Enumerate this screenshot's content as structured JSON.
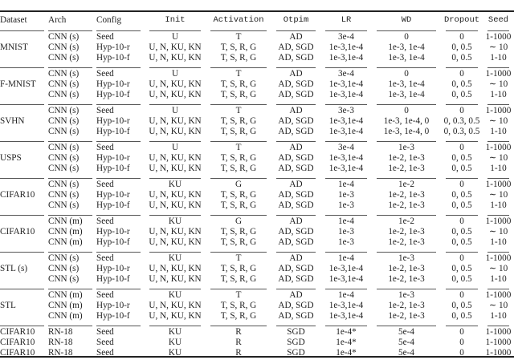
{
  "header": [
    "Dataset",
    "Arch",
    "Config",
    "Init",
    "Activation",
    "Otpim",
    "LR",
    "WD",
    "Dropout",
    "Seed"
  ],
  "groups": [
    {
      "dataset": "MNIST",
      "rows": [
        [
          "CNN (s)",
          "Seed",
          "U",
          "T",
          "AD",
          "3e-4",
          "0",
          "0",
          "1-1000"
        ],
        [
          "CNN (s)",
          "Hyp-10-r",
          "U, N, KU, KN",
          "T, S, R, G",
          "AD, SGD",
          "1e-3,1e-4",
          "1e-3, 1e-4",
          "0, 0.5",
          "∼ 10"
        ],
        [
          "CNN (s)",
          "Hyp-10-f",
          "U, N, KU, KN",
          "T, S, R, G",
          "AD, SGD",
          "1e-3,1e-4",
          "1e-3, 1e-4",
          "0, 0.5",
          "1-10"
        ]
      ]
    },
    {
      "dataset": "F-MNIST",
      "rows": [
        [
          "CNN (s)",
          "Seed",
          "U",
          "T",
          "AD",
          "3e-4",
          "0",
          "0",
          "1-1000"
        ],
        [
          "CNN (s)",
          "Hyp-10-r",
          "U, N, KU, KN",
          "T, S, R, G",
          "AD, SGD",
          "1e-3,1e-4",
          "1e-3, 1e-4",
          "0, 0.5",
          "∼ 10"
        ],
        [
          "CNN (s)",
          "Hyp-10-f",
          "U, N, KU, KN",
          "T, S, R, G",
          "AD, SGD",
          "1e-3,1e-4",
          "1e-3, 1e-4",
          "0, 0.5",
          "1-10"
        ]
      ]
    },
    {
      "dataset": "SVHN",
      "rows": [
        [
          "CNN (s)",
          "Seed",
          "U",
          "T",
          "AD",
          "3e-3",
          "0",
          "0",
          "1-1000"
        ],
        [
          "CNN (s)",
          "Hyp-10-r",
          "U, N, KU, KN",
          "T, S, R, G",
          "AD, SGD",
          "1e-3,1e-4",
          "1e-3, 1e-4, 0",
          "0, 0.3, 0.5",
          "∼ 10"
        ],
        [
          "CNN (s)",
          "Hyp-10-f",
          "U, N, KU, KN",
          "T, S, R, G",
          "AD, SGD",
          "1e-3,1e-4",
          "1e-3, 1e-4, 0",
          "0, 0.3, 0.5",
          "1-10"
        ]
      ]
    },
    {
      "dataset": "USPS",
      "rows": [
        [
          "CNN (s)",
          "Seed",
          "U",
          "T",
          "AD",
          "3e-4",
          "1e-3",
          "0",
          "1-1000"
        ],
        [
          "CNN (s)",
          "Hyp-10-r",
          "U, N, KU, KN",
          "T, S, R, G",
          "AD, SGD",
          "1e-3,1e-4",
          "1e-2, 1e-3",
          "0, 0.5",
          "∼ 10"
        ],
        [
          "CNN (s)",
          "Hyp-10-f",
          "U, N, KU, KN",
          "T, S, R, G",
          "AD, SGD",
          "1e-3,1e-4",
          "1e-2, 1e-3",
          "0, 0.5",
          "1-10"
        ]
      ]
    },
    {
      "dataset": "CIFAR10",
      "rows": [
        [
          "CNN (s)",
          "Seed",
          "KU",
          "G",
          "AD",
          "1e-4",
          "1e-2",
          "0",
          "1-1000"
        ],
        [
          "CNN (s)",
          "Hyp-10-r",
          "U, N, KU, KN",
          "T, S, R, G",
          "AD, SGD",
          "1e-3",
          "1e-2, 1e-3",
          "0, 0.5",
          "∼ 10"
        ],
        [
          "CNN (s)",
          "Hyp-10-f",
          "U, N, KU, KN",
          "T, S, R, G",
          "AD, SGD",
          "1e-3",
          "1e-2, 1e-3",
          "0, 0.5",
          "1-10"
        ]
      ]
    },
    {
      "dataset": "CIFAR10",
      "rows": [
        [
          "CNN (m)",
          "Seed",
          "KU",
          "G",
          "AD",
          "1e-4",
          "1e-2",
          "0",
          "1-1000"
        ],
        [
          "CNN (m)",
          "Hyp-10-r",
          "U, N, KU, KN",
          "T, S, R, G",
          "AD, SGD",
          "1e-3",
          "1e-2, 1e-3",
          "0, 0.5",
          "∼ 10"
        ],
        [
          "CNN (m)",
          "Hyp-10-f",
          "U, N, KU, KN",
          "T, S, R, G",
          "AD, SGD",
          "1e-3",
          "1e-2, 1e-3",
          "0, 0.5",
          "1-10"
        ]
      ]
    },
    {
      "dataset": "STL (s)",
      "rows": [
        [
          "CNN (s)",
          "Seed",
          "KU",
          "T",
          "AD",
          "1e-4",
          "1e-3",
          "0",
          "1-1000"
        ],
        [
          "CNN (s)",
          "Hyp-10-r",
          "U, N, KU, KN",
          "T, S, R, G",
          "AD, SGD",
          "1e-3,1e-4",
          "1e-2, 1e-3",
          "0, 0.5",
          "∼ 10"
        ],
        [
          "CNN (s)",
          "Hyp-10-f",
          "U, N, KU, KN",
          "T, S, R, G",
          "AD, SGD",
          "1e-3,1e-4",
          "1e-2, 1e-3",
          "0, 0.5",
          "1-10"
        ]
      ]
    },
    {
      "dataset": "STL",
      "rows": [
        [
          "CNN (m)",
          "Seed",
          "KU",
          "T",
          "AD",
          "1e-4",
          "1e-3",
          "0",
          "1-1000"
        ],
        [
          "CNN (m)",
          "Hyp-10-r",
          "U, N, KU, KN",
          "T, S, R, G",
          "AD, SGD",
          "1e-3,1e-4",
          "1e-2, 1e-3",
          "0, 0.5",
          "∼ 10"
        ],
        [
          "CNN (m)",
          "Hyp-10-f",
          "U, N, KU, KN",
          "T, S, R, G",
          "AD, SGD",
          "1e-3,1e-4",
          "1e-2, 1e-3",
          "0, 0.5",
          "1-10"
        ]
      ]
    }
  ],
  "final_rows": [
    [
      "CIFAR10",
      "RN-18",
      "Seed",
      "KU",
      "R",
      "SGD",
      "1e-4*",
      "5e-4",
      "0",
      "1-1000"
    ],
    [
      "CIFAR10",
      "RN-18",
      "Seed",
      "KU",
      "R",
      "SGD",
      "1e-4*",
      "5e-4",
      "0",
      "1-1000"
    ],
    [
      "CIFAR10",
      "RN-18",
      "Seed",
      "KU",
      "R",
      "SGD",
      "1e-4*",
      "5e-4",
      "0",
      "1-1000"
    ]
  ]
}
